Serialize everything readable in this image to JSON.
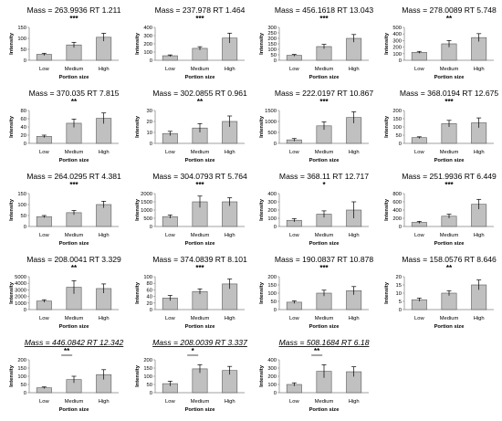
{
  "figure": {
    "ylabel": "Intensity",
    "xlabel": "Portion size",
    "categories": [
      "Low",
      "Medium",
      "High"
    ],
    "bar_fill": "#c0c0c0",
    "bar_stroke": "#595959",
    "axis_color": "#808080"
  },
  "chart_data": [
    {
      "type": "bar",
      "title": "Mass = 263.9936 RT 1.211",
      "sig": "***",
      "sig_style": "plain",
      "categories": [
        "Low",
        "Medium",
        "High"
      ],
      "values": [
        27,
        70,
        105
      ],
      "errors": [
        5,
        12,
        18
      ],
      "ylim": [
        0,
        150
      ],
      "yticks": [
        0,
        50,
        100,
        150
      ]
    },
    {
      "type": "bar",
      "title": "Mass = 237.978 RT 1.464",
      "sig": "***",
      "sig_style": "plain",
      "categories": [
        "Low",
        "Medium",
        "High"
      ],
      "values": [
        55,
        145,
        270
      ],
      "errors": [
        10,
        20,
        60
      ],
      "ylim": [
        0,
        400
      ],
      "yticks": [
        0,
        100,
        200,
        300,
        400
      ]
    },
    {
      "type": "bar",
      "title": "Mass = 456.1618 RT 13.043",
      "sig": "***",
      "sig_style": "plain",
      "categories": [
        "Low",
        "Medium",
        "High"
      ],
      "values": [
        45,
        125,
        200
      ],
      "errors": [
        8,
        20,
        35
      ],
      "ylim": [
        0,
        300
      ],
      "yticks": [
        0,
        50,
        100,
        150,
        200,
        250,
        300
      ]
    },
    {
      "type": "bar",
      "title": "Mass = 278.0089 RT 5.748",
      "sig": "**",
      "sig_style": "plain",
      "categories": [
        "Low",
        "Medium",
        "High"
      ],
      "values": [
        120,
        250,
        345
      ],
      "errors": [
        15,
        50,
        60
      ],
      "ylim": [
        0,
        500
      ],
      "yticks": [
        0,
        100,
        200,
        300,
        400,
        500
      ]
    },
    {
      "type": "bar",
      "title": "Mass = 370.035 RT 7.815",
      "sig": "**",
      "sig_style": "plain",
      "categories": [
        "Low",
        "Medium",
        "High"
      ],
      "values": [
        17,
        49,
        61
      ],
      "errors": [
        3,
        10,
        13
      ],
      "ylim": [
        0,
        80
      ],
      "yticks": [
        0,
        20,
        40,
        60,
        80
      ]
    },
    {
      "type": "bar",
      "title": "Mass = 302.0855 RT 0.961",
      "sig": "**",
      "sig_style": "plain",
      "categories": [
        "Low",
        "Medium",
        "High"
      ],
      "values": [
        9,
        14,
        20
      ],
      "errors": [
        2,
        4,
        5
      ],
      "ylim": [
        0,
        30
      ],
      "yticks": [
        0,
        10,
        20,
        30
      ]
    },
    {
      "type": "bar",
      "title": "Mass = 222.0197 RT 10.867",
      "sig": "***",
      "sig_style": "plain",
      "categories": [
        "Low",
        "Medium",
        "High"
      ],
      "values": [
        160,
        800,
        1180
      ],
      "errors": [
        60,
        180,
        260
      ],
      "ylim": [
        0,
        1500
      ],
      "yticks": [
        0,
        500,
        1000,
        1500
      ]
    },
    {
      "type": "bar",
      "title": "Mass = 368.0194 RT 12.675",
      "sig": "***",
      "sig_style": "plain",
      "categories": [
        "Low",
        "Medium",
        "High"
      ],
      "values": [
        35,
        120,
        125
      ],
      "errors": [
        5,
        20,
        30
      ],
      "ylim": [
        0,
        200
      ],
      "yticks": [
        0,
        50,
        100,
        150,
        200
      ]
    },
    {
      "type": "bar",
      "title": "Mass = 264.0295 RT 4.381",
      "sig": "***",
      "sig_style": "plain",
      "categories": [
        "Low",
        "Medium",
        "High"
      ],
      "values": [
        45,
        63,
        100
      ],
      "errors": [
        5,
        10,
        15
      ],
      "ylim": [
        0,
        150
      ],
      "yticks": [
        0,
        50,
        100,
        150
      ]
    },
    {
      "type": "bar",
      "title": "Mass = 304.0793 RT 5.764",
      "sig": "***",
      "sig_style": "plain",
      "categories": [
        "Low",
        "Medium",
        "High"
      ],
      "values": [
        600,
        1500,
        1500
      ],
      "errors": [
        100,
        350,
        250
      ],
      "ylim": [
        0,
        2000
      ],
      "yticks": [
        0,
        500,
        1000,
        1500,
        2000
      ]
    },
    {
      "type": "bar",
      "title": "Mass = 368.11 RT 12.717",
      "sig": "*",
      "sig_style": "plain",
      "categories": [
        "Low",
        "Medium",
        "High"
      ],
      "values": [
        75,
        150,
        200
      ],
      "errors": [
        20,
        40,
        100
      ],
      "ylim": [
        0,
        400
      ],
      "yticks": [
        0,
        100,
        200,
        300,
        400
      ]
    },
    {
      "type": "bar",
      "title": "Mass = 251.9936 RT 6.449",
      "sig": "***",
      "sig_style": "plain",
      "categories": [
        "Low",
        "Medium",
        "High"
      ],
      "values": [
        100,
        250,
        540
      ],
      "errors": [
        25,
        50,
        120
      ],
      "ylim": [
        0,
        800
      ],
      "yticks": [
        0,
        200,
        400,
        600,
        800
      ]
    },
    {
      "type": "bar",
      "title": "Mass = 208.0041 RT 3.329",
      "sig": "**",
      "sig_style": "plain",
      "categories": [
        "Low",
        "Medium",
        "High"
      ],
      "values": [
        1300,
        3400,
        3200
      ],
      "errors": [
        200,
        1000,
        700
      ],
      "ylim": [
        0,
        5000
      ],
      "yticks": [
        0,
        1000,
        2000,
        3000,
        4000,
        5000
      ]
    },
    {
      "type": "bar",
      "title": "Mass = 374.0839 RT 8.101",
      "sig": "***",
      "sig_style": "plain",
      "categories": [
        "Low",
        "Medium",
        "High"
      ],
      "values": [
        35,
        55,
        78
      ],
      "errors": [
        8,
        8,
        15
      ],
      "ylim": [
        0,
        100
      ],
      "yticks": [
        0,
        20,
        40,
        60,
        80,
        100
      ]
    },
    {
      "type": "bar",
      "title": "Mass = 190.0837 RT 10.878",
      "sig": "***",
      "sig_style": "plain",
      "categories": [
        "Low",
        "Medium",
        "High"
      ],
      "values": [
        45,
        100,
        115
      ],
      "errors": [
        8,
        18,
        25
      ],
      "ylim": [
        0,
        200
      ],
      "yticks": [
        0,
        50,
        100,
        150,
        200
      ]
    },
    {
      "type": "bar",
      "title": "Mass = 158.0576 RT 8.646",
      "sig": "**",
      "sig_style": "plain",
      "categories": [
        "Low",
        "Medium",
        "High"
      ],
      "values": [
        6,
        10,
        15
      ],
      "errors": [
        1,
        1.5,
        3
      ],
      "ylim": [
        0,
        20
      ],
      "yticks": [
        0,
        5,
        10,
        15,
        20
      ]
    },
    {
      "type": "bar",
      "title": "Mass = 446.0842 RT 12.342",
      "sig": "**",
      "sig_style": "underline",
      "categories": [
        "Low",
        "Medium",
        "High"
      ],
      "values": [
        30,
        80,
        110
      ],
      "errors": [
        5,
        20,
        30
      ],
      "ylim": [
        0,
        200
      ],
      "yticks": [
        0,
        50,
        100,
        150,
        200
      ]
    },
    {
      "type": "bar",
      "title": "Mass = 208.0039 RT 3.337",
      "sig": "*",
      "sig_style": "underline",
      "categories": [
        "Low",
        "Medium",
        "High"
      ],
      "values": [
        55,
        145,
        135
      ],
      "errors": [
        15,
        25,
        25
      ],
      "ylim": [
        0,
        200
      ],
      "yticks": [
        0,
        50,
        100,
        150,
        200
      ]
    },
    {
      "type": "bar",
      "title": "Mass = 508.1684 RT 6.18",
      "sig": "**",
      "sig_style": "underline",
      "categories": [
        "Low",
        "Medium",
        "High"
      ],
      "values": [
        100,
        260,
        255
      ],
      "errors": [
        20,
        80,
        60
      ],
      "ylim": [
        0,
        400
      ],
      "yticks": [
        0,
        100,
        200,
        300,
        400
      ]
    }
  ]
}
